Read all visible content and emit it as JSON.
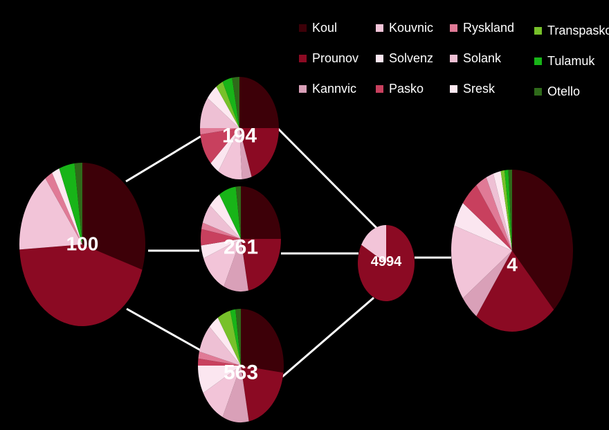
{
  "categories": [
    {
      "name": "Koul",
      "color": "#3d0008"
    },
    {
      "name": "Prounov",
      "color": "#8b0a23"
    },
    {
      "name": "Kannvic",
      "color": "#d9a0b8"
    },
    {
      "name": "Kouvnic",
      "color": "#f2c4d8"
    },
    {
      "name": "Solvenz",
      "color": "#fbe6f0"
    },
    {
      "name": "Pasko",
      "color": "#c8405e"
    },
    {
      "name": "Ryskland",
      "color": "#e07a96"
    },
    {
      "name": "Solank",
      "color": "#eec0d4"
    },
    {
      "name": "Sresk",
      "color": "#fde9f1"
    },
    {
      "name": "Transpasko",
      "color": "#77c12a"
    },
    {
      "name": "Tulamuk",
      "color": "#18b418"
    },
    {
      "name": "Otello",
      "color": "#2f6a1a"
    }
  ],
  "nodes": [
    {
      "id": "n100",
      "label": "100",
      "values": [
        0.3,
        0.44,
        0.0,
        0.16,
        0.0,
        0.0,
        0.02,
        0.0,
        0.02,
        0.0,
        0.04,
        0.02
      ]
    },
    {
      "id": "n194",
      "label": "194",
      "values": [
        0.25,
        0.2,
        0.04,
        0.1,
        0.04,
        0.1,
        0.02,
        0.1,
        0.05,
        0.03,
        0.04,
        0.03
      ]
    },
    {
      "id": "n261",
      "label": "261",
      "values": [
        0.25,
        0.22,
        0.1,
        0.12,
        0.04,
        0.05,
        0.02,
        0.06,
        0.05,
        0.0,
        0.07,
        0.02
      ]
    },
    {
      "id": "n563",
      "label": "563",
      "values": [
        0.27,
        0.2,
        0.1,
        0.1,
        0.08,
        0.02,
        0.02,
        0.08,
        0.04,
        0.05,
        0.02,
        0.02
      ]
    },
    {
      "id": "n4994",
      "label": "4994",
      "values": [
        0.0,
        0.83,
        0.0,
        0.17,
        0.0,
        0.0,
        0.0,
        0.0,
        0.0,
        0.0,
        0.0,
        0.0
      ]
    },
    {
      "id": "n4",
      "label": "4",
      "values": [
        0.38,
        0.22,
        0.05,
        0.15,
        0.05,
        0.05,
        0.03,
        0.02,
        0.02,
        0.01,
        0.01,
        0.01
      ]
    }
  ],
  "edges": [
    {
      "from": "n100",
      "to": "n194"
    },
    {
      "from": "n100",
      "to": "n261"
    },
    {
      "from": "n100",
      "to": "n563"
    },
    {
      "from": "n194",
      "to": "n4994"
    },
    {
      "from": "n261",
      "to": "n4994"
    },
    {
      "from": "n563",
      "to": "n4994"
    },
    {
      "from": "n4994",
      "to": "n4"
    }
  ]
}
